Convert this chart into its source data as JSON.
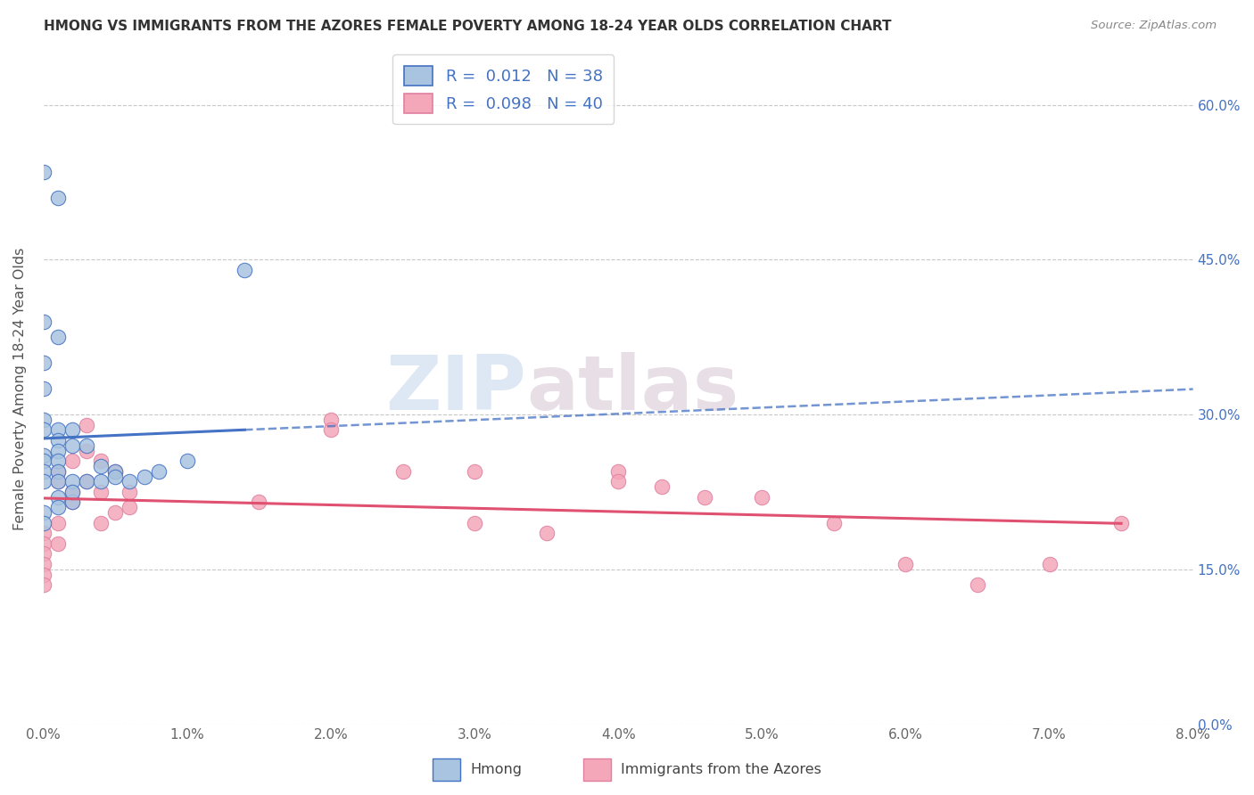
{
  "title": "HMONG VS IMMIGRANTS FROM THE AZORES FEMALE POVERTY AMONG 18-24 YEAR OLDS CORRELATION CHART",
  "source": "Source: ZipAtlas.com",
  "ylabel": "Female Poverty Among 18-24 Year Olds",
  "legend_label1": "Hmong",
  "legend_label2": "Immigrants from the Azores",
  "r1": "0.012",
  "n1": "38",
  "r2": "0.098",
  "n2": "40",
  "color1": "#a8c4e0",
  "color2": "#f4a7b9",
  "line_color1": "#4472c4",
  "line_color2": "#e05070",
  "background_color": "#ffffff",
  "watermark_zip": "ZIP",
  "watermark_atlas": "atlas",
  "xlim": [
    0.0,
    0.08
  ],
  "ylim": [
    0.0,
    0.65
  ],
  "xticks": [
    0.0,
    0.01,
    0.02,
    0.03,
    0.04,
    0.05,
    0.06,
    0.07,
    0.08
  ],
  "yticks_right": [
    0.0,
    0.15,
    0.3,
    0.45,
    0.6
  ],
  "hmong_x": [
    0.0,
    0.001,
    0.014,
    0.0,
    0.001,
    0.0,
    0.0,
    0.0,
    0.0,
    0.001,
    0.001,
    0.001,
    0.002,
    0.002,
    0.0,
    0.0,
    0.0,
    0.0,
    0.001,
    0.001,
    0.001,
    0.002,
    0.003,
    0.004,
    0.005,
    0.0,
    0.0,
    0.001,
    0.001,
    0.002,
    0.002,
    0.003,
    0.004,
    0.005,
    0.006,
    0.007,
    0.008,
    0.01
  ],
  "hmong_y": [
    0.535,
    0.51,
    0.44,
    0.39,
    0.375,
    0.35,
    0.325,
    0.295,
    0.285,
    0.285,
    0.275,
    0.265,
    0.285,
    0.27,
    0.26,
    0.255,
    0.245,
    0.235,
    0.255,
    0.245,
    0.235,
    0.215,
    0.27,
    0.25,
    0.245,
    0.205,
    0.195,
    0.22,
    0.21,
    0.235,
    0.225,
    0.235,
    0.235,
    0.24,
    0.235,
    0.24,
    0.245,
    0.255
  ],
  "azores_x": [
    0.0,
    0.0,
    0.0,
    0.0,
    0.0,
    0.0,
    0.001,
    0.001,
    0.001,
    0.001,
    0.002,
    0.002,
    0.002,
    0.003,
    0.003,
    0.003,
    0.004,
    0.004,
    0.004,
    0.005,
    0.005,
    0.006,
    0.006,
    0.015,
    0.02,
    0.02,
    0.025,
    0.03,
    0.03,
    0.035,
    0.04,
    0.04,
    0.043,
    0.046,
    0.05,
    0.055,
    0.06,
    0.065,
    0.07,
    0.075
  ],
  "azores_y": [
    0.185,
    0.175,
    0.165,
    0.155,
    0.145,
    0.135,
    0.245,
    0.235,
    0.195,
    0.175,
    0.255,
    0.225,
    0.215,
    0.29,
    0.265,
    0.235,
    0.255,
    0.225,
    0.195,
    0.245,
    0.205,
    0.225,
    0.21,
    0.215,
    0.295,
    0.285,
    0.245,
    0.245,
    0.195,
    0.185,
    0.245,
    0.235,
    0.23,
    0.22,
    0.22,
    0.195,
    0.155,
    0.135,
    0.155,
    0.195
  ]
}
